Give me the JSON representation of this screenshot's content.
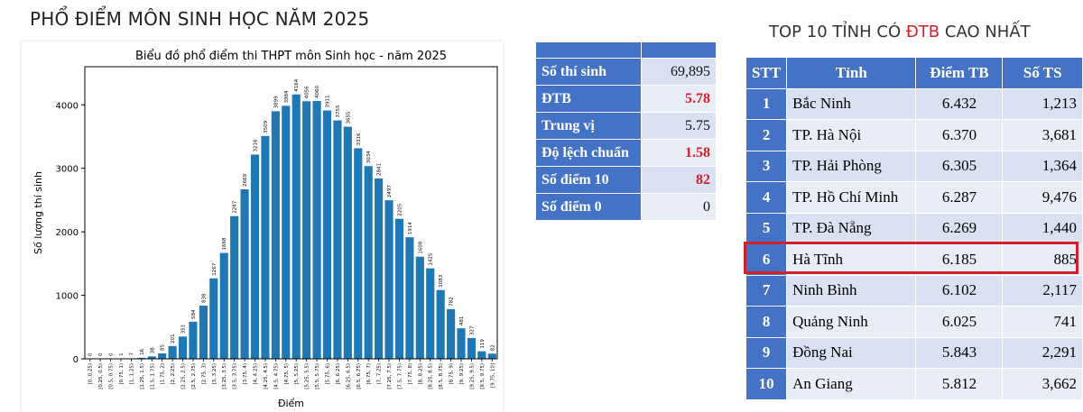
{
  "page_title": "PHỔ ĐIỂM MÔN SINH HỌC NĂM 2025",
  "chart_data": {
    "type": "bar",
    "title": "Biểu đồ phổ điểm thi THPT môn Sinh học - năm 2025",
    "xlabel": "Điểm",
    "ylabel": "Số lượng thí sinh",
    "ylim": [
      0,
      4600
    ],
    "yticks": [
      0,
      1000,
      2000,
      3000,
      4000
    ],
    "bar_color": "#1f77b4",
    "categories": [
      "[0, 0.25)",
      "[0.25, 0.5)",
      "[0.5, 0.75)",
      "[0.75, 1)",
      "[1, 1.25)",
      "[1.25, 1.5)",
      "[1.5, 1.75)",
      "[1.75, 2)",
      "[2, 2.25)",
      "[2.25, 2.5)",
      "[2.5, 2.75)",
      "[2.75, 3)",
      "[3, 3.25)",
      "[3.25, 3.5)",
      "[3.5, 3.75)",
      "[3.75, 4)",
      "[4, 4.25)",
      "[4.25, 4.5)",
      "[4.5, 4.75)",
      "[4.75, 5)",
      "[5, 5.25)",
      "[5.25, 5.5)",
      "[5.5, 5.75)",
      "[5.75, 6)",
      "[6, 6.25)",
      "[6.25, 6.5)",
      "[6.5, 6.75)",
      "[6.75, 7)",
      "[7, 7.25)",
      "[7.25, 7.5)",
      "[7.5, 7.75)",
      "[7.75, 8)",
      "[8, 8.25)",
      "[8.25, 8.5)",
      "[8.5, 8.75)",
      "[8.75, 9)",
      "[9, 9.25)",
      "[9.25, 9.5)",
      "[9.5, 9.75)",
      "[9.75, 10]"
    ],
    "values": [
      0,
      0,
      0,
      1,
      7,
      16,
      38,
      85,
      201,
      351,
      584,
      838,
      1267,
      1668,
      2247,
      2669,
      3216,
      3509,
      3899,
      3984,
      4164,
      4056,
      4060,
      3911,
      3755,
      3655,
      3316,
      3034,
      2841,
      2497,
      2205,
      1914,
      1608,
      1425,
      1083,
      782,
      481,
      327,
      119,
      82
    ]
  },
  "stats": {
    "header": [
      "",
      ""
    ],
    "rows": [
      {
        "label": "Số thí sinh",
        "value": "69,895",
        "highlight": false
      },
      {
        "label": "ĐTB",
        "value": "5.78",
        "highlight": true
      },
      {
        "label": "Trung vị",
        "value": "5.75",
        "highlight": false
      },
      {
        "label": "Độ lệch chuẩn",
        "value": "1.58",
        "highlight": true
      },
      {
        "label": "Số điểm 10",
        "value": "82",
        "highlight": true
      },
      {
        "label": "Số điểm 0",
        "value": "0",
        "highlight": false
      }
    ]
  },
  "top10": {
    "title_pre": "TOP 10 TỈNH CÓ ",
    "title_hl": "ĐTB",
    "title_post": " CAO NHẤT",
    "headers": [
      "STT",
      "Tỉnh",
      "Điểm TB",
      "Số TS"
    ],
    "highlight_row": 6,
    "highlight_color": "#d21f2c",
    "rows": [
      {
        "stt": "1",
        "province": "Bắc Ninh",
        "avg": "6.432",
        "count": "1,213"
      },
      {
        "stt": "2",
        "province": "TP. Hà Nội",
        "avg": "6.370",
        "count": "3,681"
      },
      {
        "stt": "3",
        "province": "TP. Hải Phòng",
        "avg": "6.305",
        "count": "1,364"
      },
      {
        "stt": "4",
        "province": "TP. Hồ Chí Minh",
        "avg": "6.287",
        "count": "9,476"
      },
      {
        "stt": "5",
        "province": "TP. Đà Nẵng",
        "avg": "6.269",
        "count": "1,440"
      },
      {
        "stt": "6",
        "province": "Hà Tĩnh",
        "avg": "6.185",
        "count": "885"
      },
      {
        "stt": "7",
        "province": "Ninh Bình",
        "avg": "6.102",
        "count": "2,117"
      },
      {
        "stt": "8",
        "province": "Quảng Ninh",
        "avg": "6.025",
        "count": "741"
      },
      {
        "stt": "9",
        "province": "Đồng Nai",
        "avg": "5.843",
        "count": "2,291"
      },
      {
        "stt": "10",
        "province": "An Giang",
        "avg": "5.812",
        "count": "3,662"
      }
    ]
  }
}
